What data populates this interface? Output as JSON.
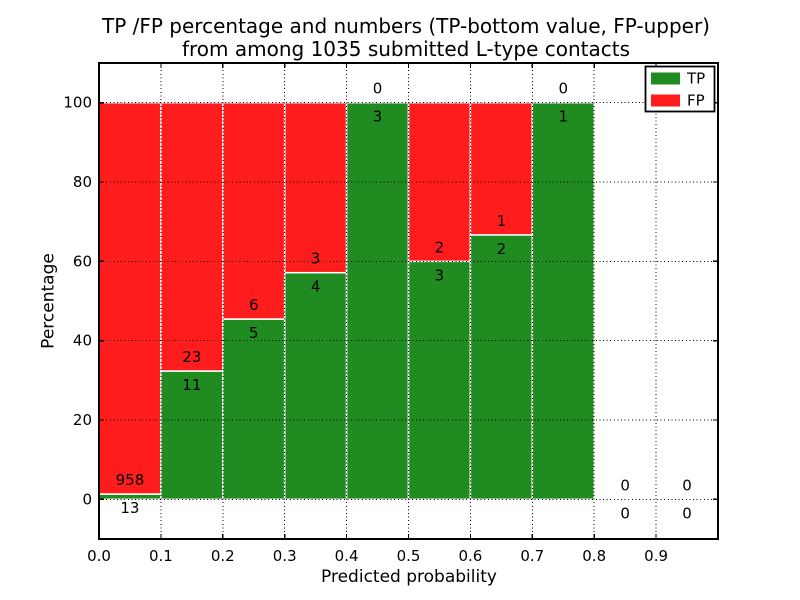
{
  "chart_data": {
    "type": "bar",
    "stacked": true,
    "title_line1": "TP /FP percentage and numbers (TP-bottom value, FP-upper)",
    "title_line2": "from among 1035 submitted L-type contacts",
    "xlabel": "Predicted probability",
    "ylabel": "Percentage",
    "total_submitted": 1035,
    "bin_width": 0.1,
    "bin_starts": [
      0.0,
      0.1,
      0.2,
      0.3,
      0.4,
      0.5,
      0.6,
      0.7,
      0.8,
      0.9
    ],
    "xtick_labels": [
      "0.0",
      "0.1",
      "0.2",
      "0.3",
      "0.4",
      "0.5",
      "0.6",
      "0.7",
      "0.8",
      "0.9"
    ],
    "ytick_values": [
      0,
      20,
      40,
      60,
      80,
      100
    ],
    "xlim": [
      0.0,
      1.0
    ],
    "ylim": [
      -10,
      110
    ],
    "grid_style": "dotted",
    "axis_below": false,
    "background_color": "#ffffff",
    "bar_edge_color": "#ffffff",
    "legend": {
      "position": "upper right",
      "labels": [
        "TP",
        "FP"
      ]
    },
    "series": [
      {
        "name": "TP",
        "color": "#208b20",
        "counts": [
          13,
          11,
          5,
          4,
          3,
          3,
          2,
          1,
          0,
          0
        ],
        "percent": [
          1.3,
          32.4,
          45.5,
          57.1,
          100.0,
          60.0,
          66.7,
          100.0,
          0,
          0
        ]
      },
      {
        "name": "FP",
        "color": "#ff1c1c",
        "counts": [
          958,
          23,
          6,
          3,
          0,
          2,
          1,
          0,
          0,
          0
        ],
        "percent": [
          98.7,
          67.6,
          54.5,
          42.9,
          0.0,
          40.0,
          33.3,
          0.0,
          0,
          0
        ]
      }
    ]
  }
}
